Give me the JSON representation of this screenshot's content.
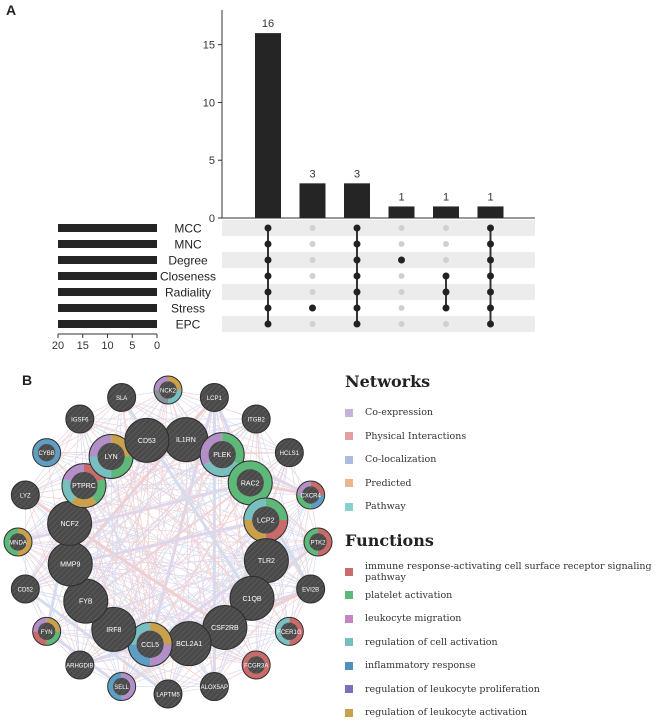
{
  "panel_a_label": "A",
  "panel_b_label": "B",
  "chart_data": {
    "type": "bar",
    "title": "",
    "ylim": [
      0,
      18
    ],
    "y_ticks": [
      0,
      5,
      10,
      15
    ],
    "set_names": [
      "MCC",
      "MNC",
      "Degree",
      "Closeness",
      "Radiality",
      "Stress",
      "EPC"
    ],
    "set_sizes": [
      20,
      20,
      20,
      20,
      20,
      20,
      20
    ],
    "set_size_ticks": [
      20,
      15,
      10,
      5,
      0
    ],
    "set_size_range": [
      0,
      20
    ],
    "intersections": [
      {
        "value": 16,
        "label": "16",
        "members": [
          0,
          1,
          2,
          3,
          4,
          5,
          6
        ]
      },
      {
        "value": 3,
        "label": "3",
        "members": [
          5
        ]
      },
      {
        "value": 3,
        "label": "3",
        "members": [
          0,
          1,
          2,
          3,
          4,
          5,
          6
        ]
      },
      {
        "value": 1,
        "label": "1",
        "members": [
          2
        ]
      },
      {
        "value": 1,
        "label": "1",
        "members": [
          3,
          4,
          5
        ]
      },
      {
        "value": 1,
        "label": "1",
        "members": [
          0,
          1,
          2,
          3,
          4,
          5,
          6
        ]
      }
    ]
  },
  "network": {
    "outer_nodes": [
      {
        "name": "NCK2",
        "pie": [
          "#c9a04c",
          "#79bfc0",
          "#8a8f9a",
          "#b28fc6"
        ]
      },
      {
        "name": "LCP1",
        "pie": []
      },
      {
        "name": "ITGB2",
        "pie": []
      },
      {
        "name": "HCLS1",
        "pie": []
      },
      {
        "name": "CXCR4",
        "pie": [
          "#c96b6b",
          "#5e9ec2",
          "#5db87a",
          "#b28fc6"
        ]
      },
      {
        "name": "PTK2",
        "pie": [
          "#c96b6b",
          "#5db87a"
        ]
      },
      {
        "name": "EVI2B",
        "pie": []
      },
      {
        "name": "FCER1G",
        "pie": [
          "#c96b6b",
          "#79bfc0"
        ]
      },
      {
        "name": "FCGR3A",
        "pie": [
          "#c96b6b"
        ]
      },
      {
        "name": "ALOX5AP",
        "pie": []
      },
      {
        "name": "LAPTM5",
        "pie": []
      },
      {
        "name": "SELL",
        "pie": [
          "#b28fc6",
          "#5e9ec2"
        ]
      },
      {
        "name": "ARHGDIB",
        "pie": []
      },
      {
        "name": "FYN",
        "pie": [
          "#c9a04c",
          "#5db87a",
          "#c96b6b",
          "#b28fc6"
        ]
      },
      {
        "name": "CD52",
        "pie": []
      },
      {
        "name": "MNDA",
        "pie": [
          "#c9a04c",
          "#5db87a"
        ]
      },
      {
        "name": "LYZ",
        "pie": []
      },
      {
        "name": "CYBB",
        "pie": [
          "#5e9ec2"
        ]
      },
      {
        "name": "IGSF6",
        "pie": []
      },
      {
        "name": "SLA",
        "pie": []
      }
    ],
    "inner_nodes": [
      {
        "name": "IL1RN",
        "pie": []
      },
      {
        "name": "PLEK",
        "pie": [
          "#5db87a",
          "#79bfc0",
          "#b28fc6"
        ]
      },
      {
        "name": "RAC2",
        "pie": [
          "#5db87a"
        ]
      },
      {
        "name": "LCP2",
        "pie": [
          "#5db87a",
          "#c96b6b",
          "#c9a04c",
          "#79bfc0"
        ]
      },
      {
        "name": "TLR2",
        "pie": []
      },
      {
        "name": "C1QB",
        "pie": []
      },
      {
        "name": "CSF2RB",
        "pie": []
      },
      {
        "name": "BCL2A1",
        "pie": []
      },
      {
        "name": "CCL5",
        "pie": [
          "#c9a04c",
          "#b28fc6",
          "#5e9ec2",
          "#79bfc0"
        ]
      },
      {
        "name": "IRF8",
        "pie": []
      },
      {
        "name": "FYB",
        "pie": []
      },
      {
        "name": "MMP9",
        "pie": []
      },
      {
        "name": "NCF2",
        "pie": []
      },
      {
        "name": "PTPRC",
        "pie": [
          "#c96b6b",
          "#5db87a",
          "#c9a04c",
          "#79bfc0",
          "#b28fc6"
        ]
      },
      {
        "name": "LYN",
        "pie": [
          "#c9a04c",
          "#5db87a",
          "#79bfc0",
          "#b28fc6"
        ]
      },
      {
        "name": "CD53",
        "pie": []
      }
    ],
    "edge_colors": [
      "#c7b6dd",
      "#e8a7a7",
      "#b0c2e0"
    ]
  },
  "legend": {
    "networks_title": "Networks",
    "networks": [
      {
        "label": "Co-expression",
        "color": "#c7b2db"
      },
      {
        "label": "Physical Interactions",
        "color": "#e2a0a0"
      },
      {
        "label": "Co-localization",
        "color": "#a9bde0"
      },
      {
        "label": "Predicted",
        "color": "#e7b98a"
      },
      {
        "label": "Pathway",
        "color": "#88cfd0"
      }
    ],
    "functions_title": "Functions",
    "functions": [
      {
        "label": "immune response-activating cell surface receptor signaling pathway",
        "color": "#c96b6b"
      },
      {
        "label": "platelet activation",
        "color": "#5db87a"
      },
      {
        "label": "leukocyte migration",
        "color": "#c585c5"
      },
      {
        "label": "regulation of cell activation",
        "color": "#79bfc0"
      },
      {
        "label": "inflammatory response",
        "color": "#4f8fb8"
      },
      {
        "label": "regulation of leukocyte proliferation",
        "color": "#7e6fb8"
      },
      {
        "label": "regulation of leukocyte activation",
        "color": "#c9a04c"
      }
    ]
  }
}
